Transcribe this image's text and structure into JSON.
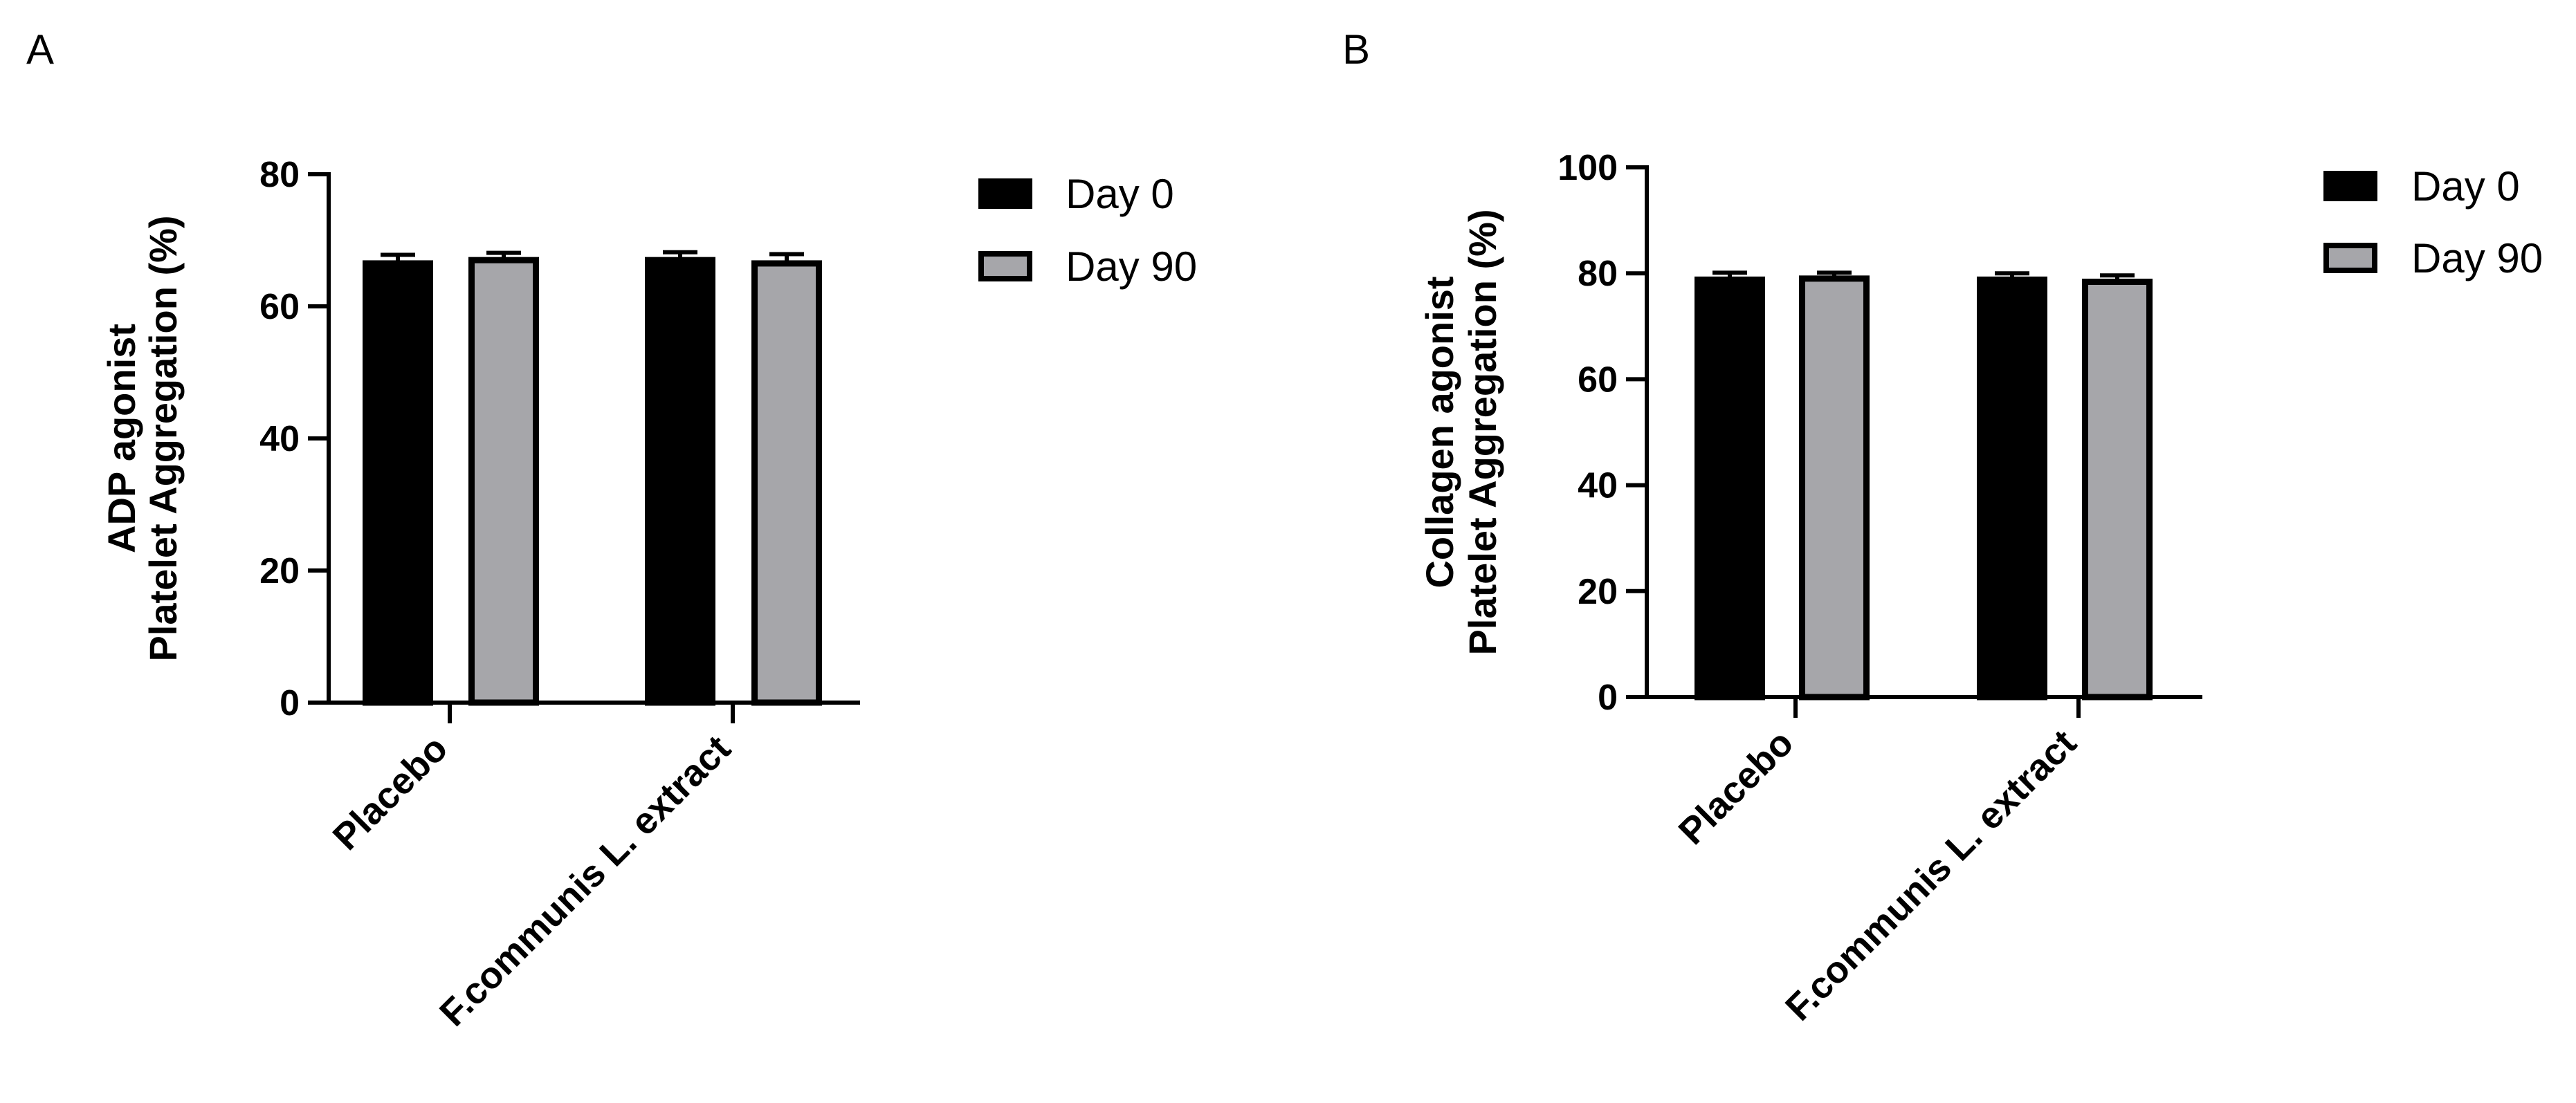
{
  "figure": {
    "panel_letters": [
      "A",
      "B"
    ]
  },
  "colors": {
    "day0": "#000000",
    "day90": "#a6a6aa",
    "axis": "#000000"
  },
  "chart_data": [
    {
      "type": "bar",
      "panel": "A",
      "title": "",
      "xlabel": "",
      "ylabel": [
        "ADP agonist",
        "Platelet Aggregation (%)"
      ],
      "ylim": [
        0,
        80
      ],
      "yticks": [
        0,
        20,
        40,
        60,
        80
      ],
      "categories": [
        "Placebo",
        "F.communis L. extract"
      ],
      "series": [
        {
          "name": "Day 0",
          "values": [
            66.5,
            67.0
          ],
          "errors": [
            1.3,
            1.2
          ]
        },
        {
          "name": "Day 90",
          "values": [
            67.0,
            66.5
          ],
          "errors": [
            1.1,
            1.4
          ]
        }
      ],
      "legend": "right"
    },
    {
      "type": "bar",
      "panel": "B",
      "title": "",
      "xlabel": "",
      "ylabel": [
        "Collagen agonist",
        "Platelet Aggregation (%)"
      ],
      "ylim": [
        0,
        100
      ],
      "yticks": [
        0,
        20,
        40,
        60,
        80,
        100
      ],
      "categories": [
        "Placebo",
        "F.communis L. extract"
      ],
      "series": [
        {
          "name": "Day 0",
          "values": [
            78.8,
            78.8
          ],
          "errors": [
            1.3,
            1.2
          ]
        },
        {
          "name": "Day 90",
          "values": [
            79.0,
            78.4
          ],
          "errors": [
            1.1,
            1.2
          ]
        }
      ],
      "legend": "right"
    }
  ]
}
